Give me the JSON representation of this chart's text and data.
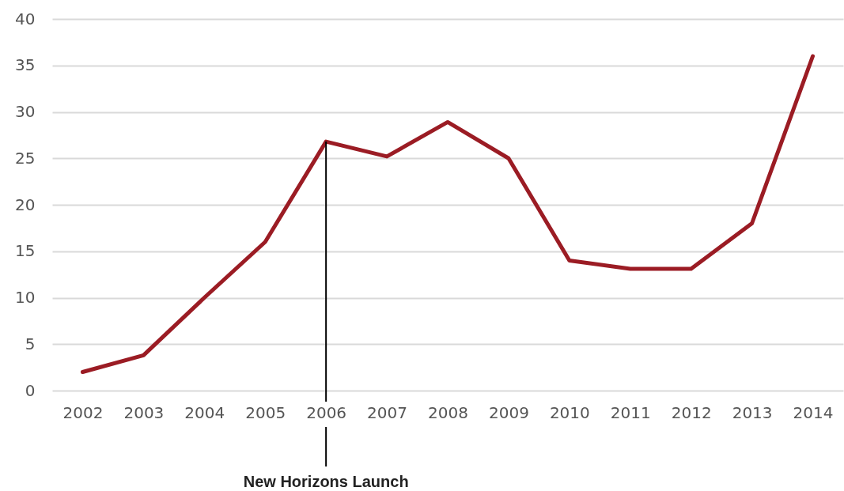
{
  "chart_data": {
    "type": "line",
    "categories": [
      "2002",
      "2003",
      "2004",
      "2005",
      "2006",
      "2007",
      "2008",
      "2009",
      "2010",
      "2011",
      "2012",
      "2013",
      "2014"
    ],
    "series": [
      {
        "color": "#9b1c24",
        "values": [
          2,
          3.8,
          10,
          16,
          26.8,
          25.2,
          28.9,
          25,
          14,
          13.1,
          13.1,
          18,
          36
        ]
      }
    ],
    "ylim": [
      0,
      40
    ],
    "yticks": [
      0,
      5,
      10,
      15,
      20,
      25,
      30,
      35,
      40
    ],
    "grid": "y",
    "legend": false,
    "marker": "none",
    "line_style": "solid",
    "ref_lines": [
      {
        "axis": "x",
        "value": "2006",
        "label": "New Horizons Launch"
      }
    ]
  }
}
